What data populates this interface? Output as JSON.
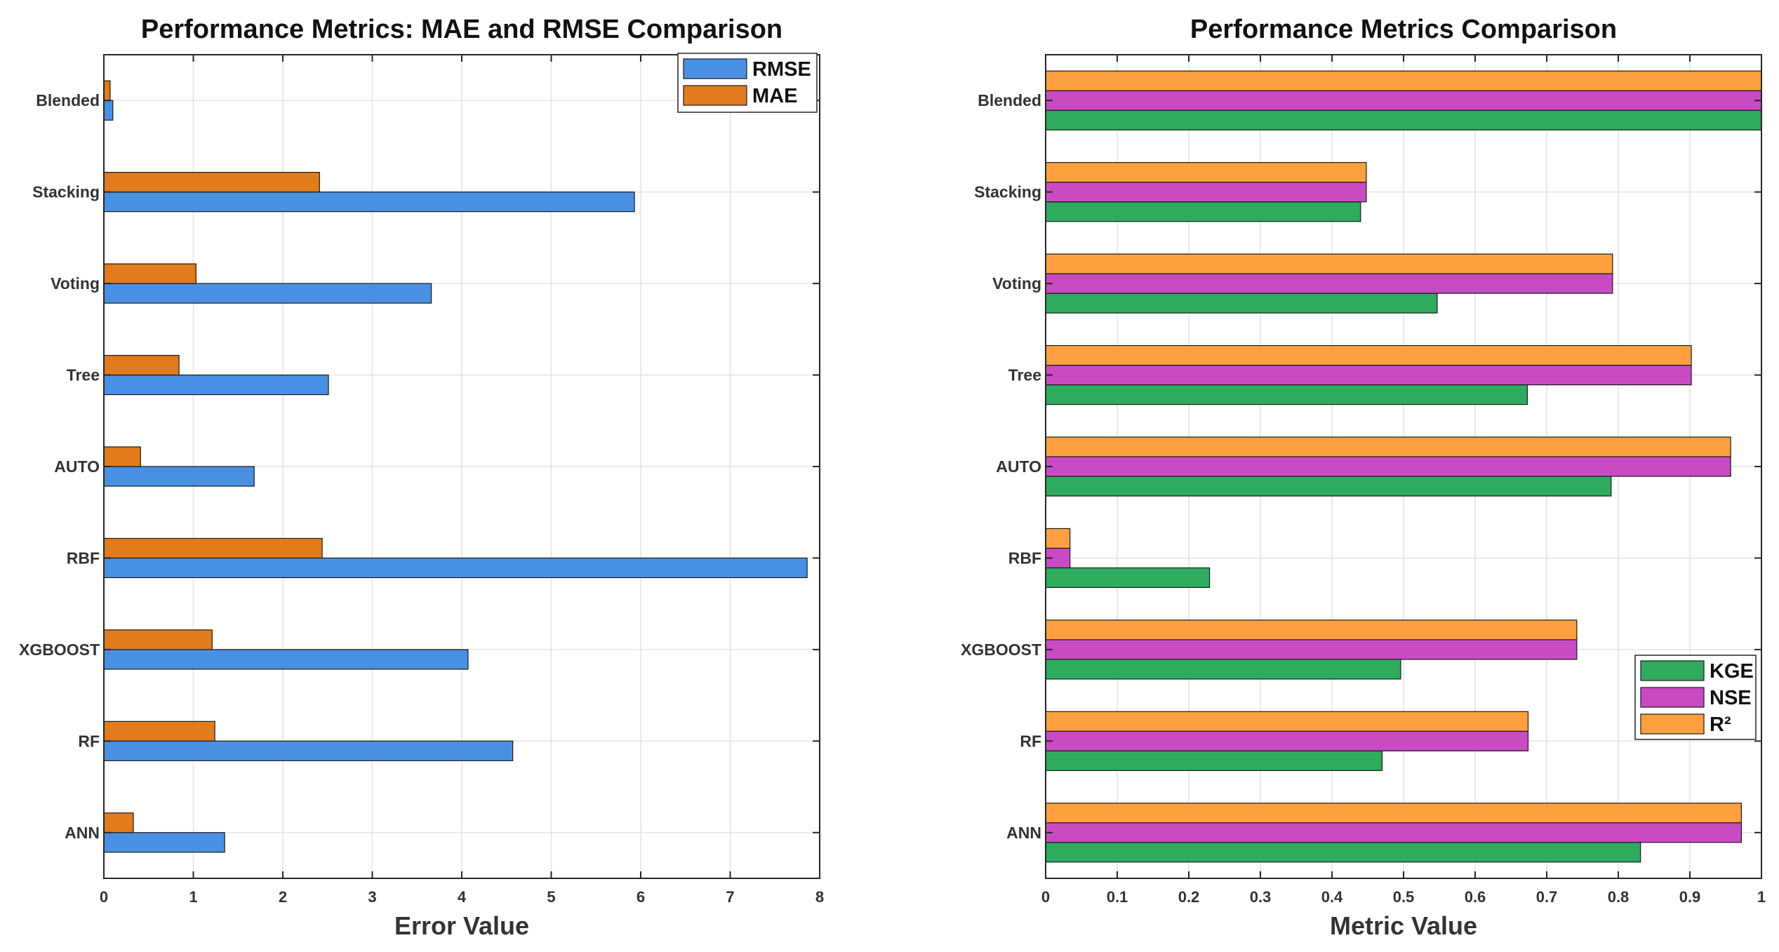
{
  "chart_data": [
    {
      "type": "bar",
      "orientation": "horizontal",
      "title": "Performance Metrics: MAE and RMSE Comparison",
      "xlabel": "Error Value",
      "ylabel": "",
      "xlim": [
        0,
        8
      ],
      "xticks": [
        "0",
        "1",
        "2",
        "3",
        "4",
        "5",
        "6",
        "7",
        "8"
      ],
      "grid": true,
      "legend_position": "top-right",
      "categories": [
        "Blended",
        "Stacking",
        "Voting",
        "Tree",
        "AUTO",
        "RBF",
        "XGBOOST",
        "RF",
        "ANN"
      ],
      "series": [
        {
          "name": "RMSE",
          "color": "#4a90e2",
          "values": [
            0.1,
            5.93,
            3.66,
            2.51,
            1.68,
            7.86,
            4.07,
            4.57,
            1.35
          ]
        },
        {
          "name": "MAE",
          "color": "#e07b1e",
          "values": [
            0.07,
            2.41,
            1.03,
            0.84,
            0.41,
            2.44,
            1.21,
            1.24,
            0.33
          ]
        }
      ]
    },
    {
      "type": "bar",
      "orientation": "horizontal",
      "title": "Performance Metrics Comparison",
      "xlabel": "Metric Value",
      "ylabel": "",
      "xlim": [
        0,
        1
      ],
      "xticks": [
        "0",
        "0.1",
        "0.2",
        "0.3",
        "0.4",
        "0.5",
        "0.6",
        "0.7",
        "0.8",
        "0.9",
        "1"
      ],
      "grid": true,
      "legend_position": "lower-right",
      "categories": [
        "Blended",
        "Stacking",
        "Voting",
        "Tree",
        "AUTO",
        "RBF",
        "XGBOOST",
        "RF",
        "ANN"
      ],
      "series": [
        {
          "name": "KGE",
          "color": "#2eab5f",
          "values": [
            1.0,
            0.44,
            0.547,
            0.673,
            0.79,
            0.229,
            0.496,
            0.47,
            0.831
          ]
        },
        {
          "name": "NSE",
          "color": "#c94bc3",
          "values": [
            1.0,
            0.448,
            0.792,
            0.902,
            0.957,
            0.034,
            0.742,
            0.674,
            0.972
          ]
        },
        {
          "name": "R²",
          "color": "#ffa040",
          "values": [
            1.0,
            0.448,
            0.792,
            0.902,
            0.957,
            0.034,
            0.742,
            0.674,
            0.972
          ]
        }
      ]
    }
  ]
}
